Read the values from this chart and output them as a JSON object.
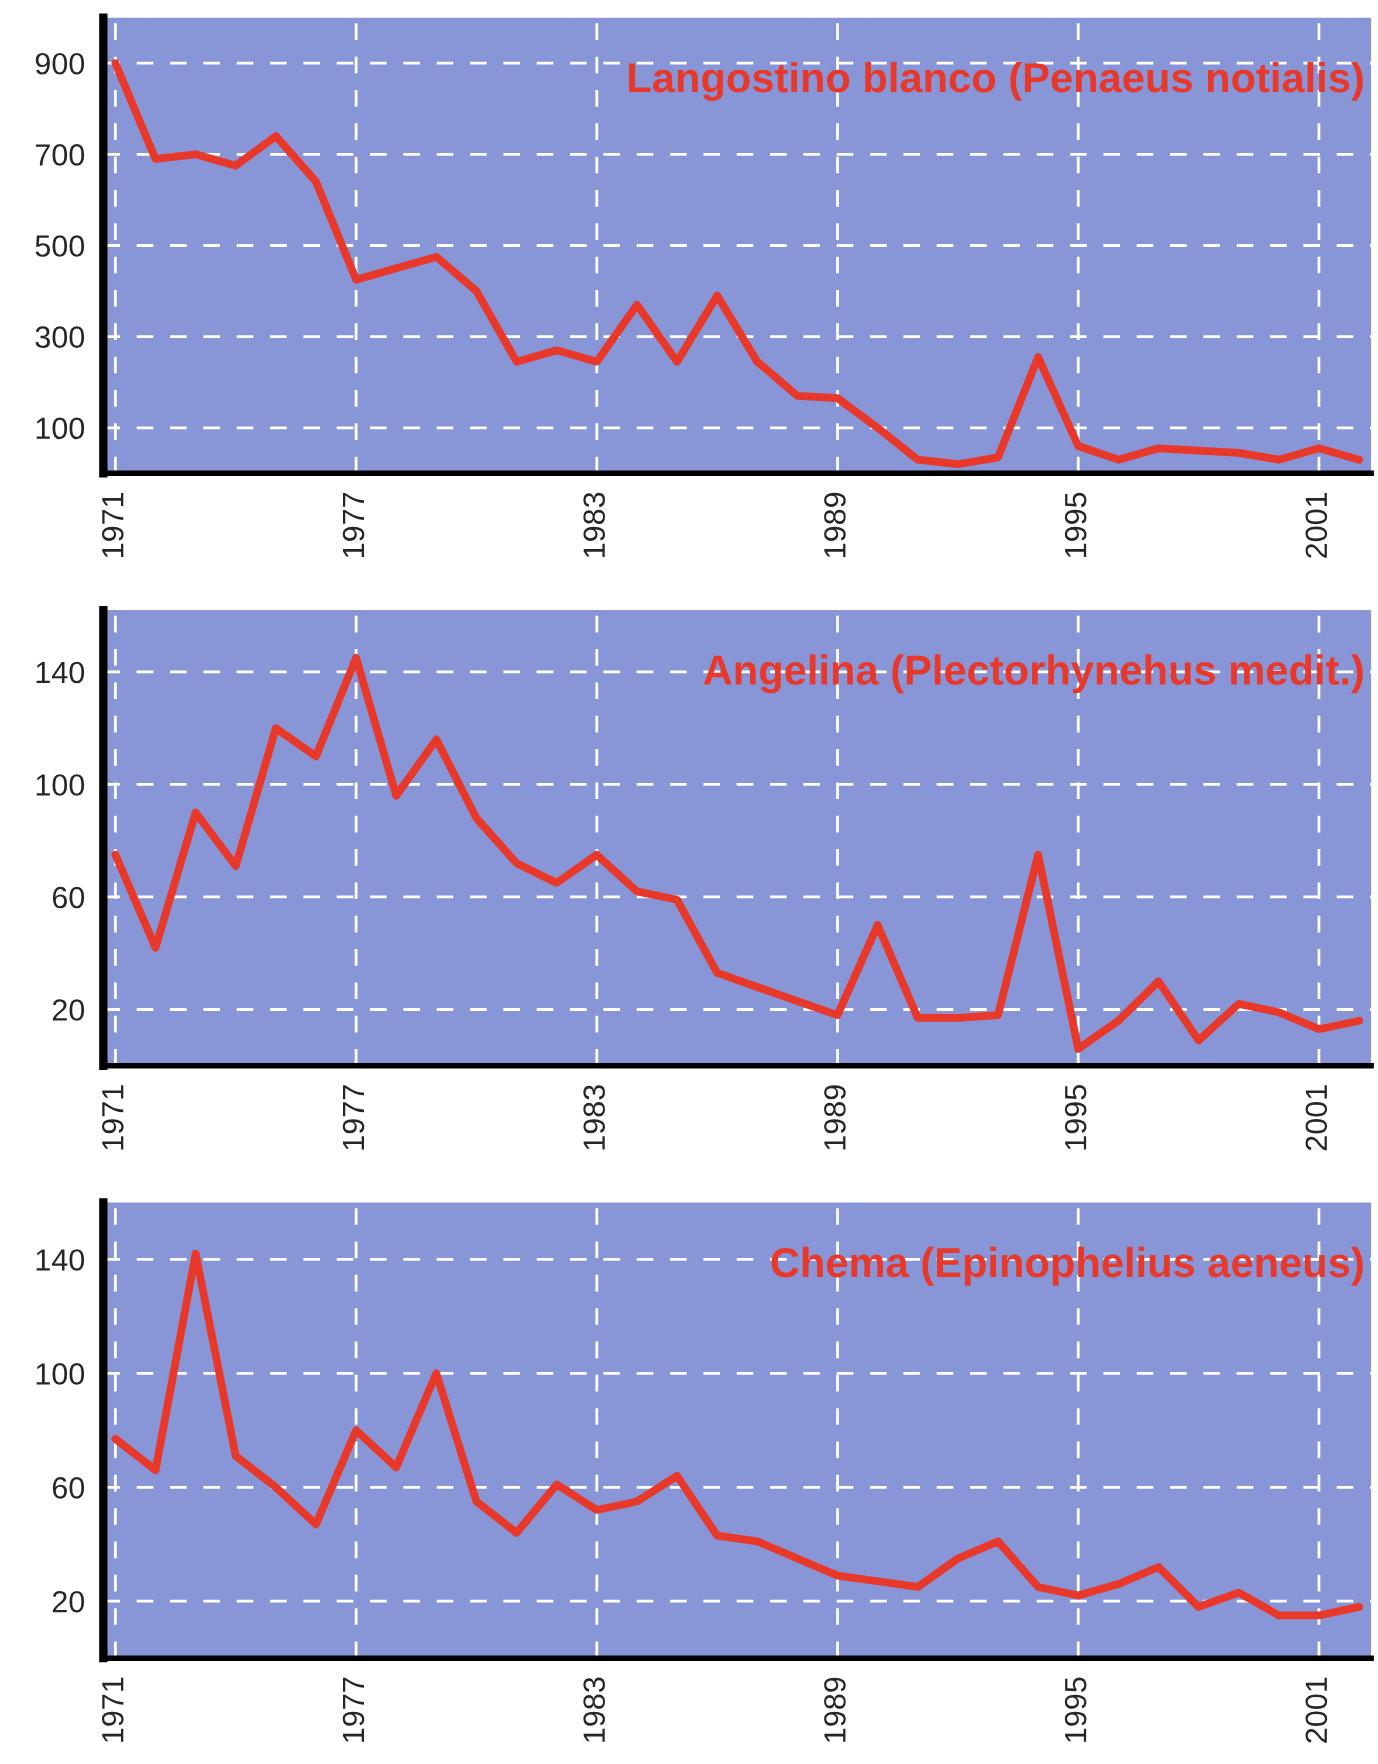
{
  "chart_data": [
    {
      "type": "line",
      "title": "Langostino blanco (Penaeus notialis)",
      "x": [
        1971,
        1972,
        1973,
        1974,
        1975,
        1976,
        1977,
        1978,
        1979,
        1980,
        1981,
        1982,
        1983,
        1984,
        1985,
        1986,
        1987,
        1988,
        1989,
        1990,
        1991,
        1992,
        1993,
        1994,
        1995,
        1996,
        1997,
        1998,
        1999,
        2000,
        2001,
        2002
      ],
      "series": [
        {
          "color": "#e8382a",
          "values": [
            900,
            690,
            700,
            675,
            740,
            640,
            425,
            450,
            475,
            400,
            245,
            270,
            245,
            370,
            245,
            390,
            245,
            170,
            165,
            100,
            30,
            20,
            35,
            255,
            60,
            30,
            55,
            50,
            45,
            30,
            55,
            30
          ]
        }
      ],
      "xlim": [
        1970.7,
        2002.3
      ],
      "xticks": [
        1971,
        1977,
        1983,
        1989,
        1995,
        2001
      ],
      "ylim": [
        0,
        1000
      ],
      "yticks": [
        100,
        300,
        500,
        700,
        900
      ],
      "grid": true,
      "marker": "none",
      "line_style": "solid"
    },
    {
      "type": "line",
      "title": "Angelina (Plectorhynehus medit.)",
      "x": [
        1971,
        1972,
        1973,
        1974,
        1975,
        1976,
        1977,
        1978,
        1979,
        1980,
        1981,
        1982,
        1983,
        1984,
        1985,
        1986,
        1987,
        1988,
        1989,
        1990,
        1991,
        1992,
        1993,
        1994,
        1995,
        1996,
        1997,
        1998,
        1999,
        2000,
        2001,
        2002
      ],
      "series": [
        {
          "color": "#e8382a",
          "values": [
            75,
            42,
            90,
            71,
            120,
            110,
            145,
            96,
            116,
            88,
            72,
            65,
            75,
            62,
            59,
            33,
            28,
            23,
            18,
            50,
            17,
            17,
            18,
            75,
            6,
            16,
            30,
            9,
            22,
            19,
            13,
            16
          ]
        }
      ],
      "xlim": [
        1970.7,
        2002.3
      ],
      "xticks": [
        1971,
        1977,
        1983,
        1989,
        1995,
        2001
      ],
      "ylim": [
        0,
        162
      ],
      "yticks": [
        20,
        60,
        100,
        140
      ],
      "grid": true,
      "marker": "none",
      "line_style": "solid"
    },
    {
      "type": "line",
      "title": "Chema (Epinophelius aeneus)",
      "x": [
        1971,
        1972,
        1973,
        1974,
        1975,
        1976,
        1977,
        1978,
        1979,
        1980,
        1981,
        1982,
        1983,
        1984,
        1985,
        1986,
        1987,
        1988,
        1989,
        1990,
        1991,
        1992,
        1993,
        1994,
        1995,
        1996,
        1997,
        1998,
        1999,
        2000,
        2001,
        2002
      ],
      "series": [
        {
          "color": "#e8382a",
          "values": [
            77,
            66,
            142,
            71,
            60,
            47,
            80,
            67,
            100,
            55,
            44,
            61,
            52,
            55,
            64,
            43,
            41,
            35,
            29,
            27,
            25,
            35,
            41,
            25,
            22,
            26,
            32,
            18,
            23,
            15,
            15,
            18
          ]
        }
      ],
      "xlim": [
        1970.7,
        2002.3
      ],
      "xticks": [
        1971,
        1977,
        1983,
        1989,
        1995,
        2001
      ],
      "ylim": [
        0,
        160
      ],
      "yticks": [
        20,
        60,
        100,
        140
      ],
      "grid": true,
      "marker": "none",
      "line_style": "solid"
    }
  ]
}
